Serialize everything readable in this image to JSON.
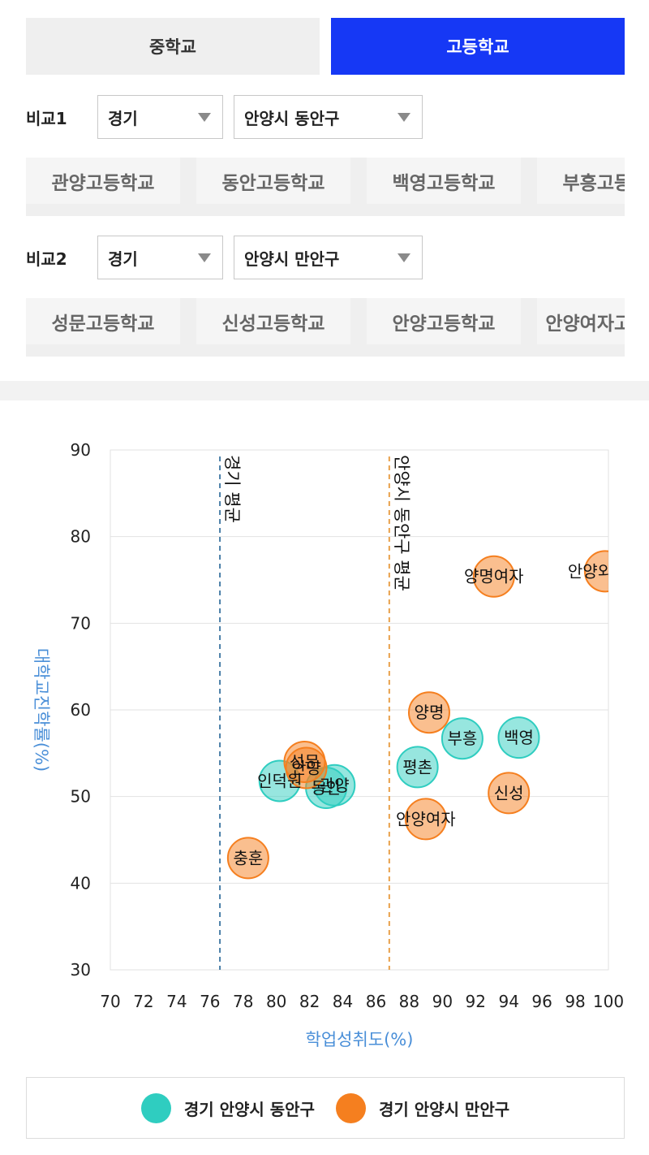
{
  "tabs": [
    {
      "label": "중학교",
      "active": false
    },
    {
      "label": "고등학교",
      "active": true
    }
  ],
  "compare1": {
    "label": "비교1",
    "region": "경기",
    "district": "안양시 동안구",
    "schools": [
      "관양고등학교",
      "동안고등학교",
      "백영고등학교",
      "부흥고등학교"
    ]
  },
  "compare2": {
    "label": "비교2",
    "region": "경기",
    "district": "안양시 만안구",
    "schools": [
      "성문고등학교",
      "신성고등학교",
      "안양고등학교",
      "안양여자고등학교"
    ]
  },
  "colors": {
    "series1": "#2fcdc0",
    "series2": "#f57f1f",
    "tab_active": "#1638f5",
    "axis_title": "#4a8fd8",
    "ref1_line": "#4a7fa8",
    "ref2_line": "#e8a04a"
  },
  "chart_data": {
    "type": "scatter",
    "xlabel": "학업성취도(%)",
    "ylabel": "대학교진학률(%)",
    "xlim": [
      70,
      100
    ],
    "ylim": [
      30,
      90
    ],
    "x_ticks": [
      70,
      72,
      74,
      76,
      78,
      80,
      82,
      84,
      86,
      88,
      90,
      92,
      94,
      96,
      98,
      100
    ],
    "y_ticks": [
      30,
      40,
      50,
      60,
      70,
      80,
      90
    ],
    "grid": "horizontal",
    "reference_lines": [
      {
        "label": "경기 평균",
        "x": 76.6,
        "color_key": "ref1_line"
      },
      {
        "label": "안양시 동안구 평균",
        "x": 86.8,
        "color_key": "ref2_line"
      }
    ],
    "series": [
      {
        "name": "경기 안양시 동안구",
        "color_key": "series1",
        "points": [
          {
            "label": "인덕원",
            "x": 80.2,
            "y": 51.8
          },
          {
            "label": "동안",
            "x": 83.0,
            "y": 51.0
          },
          {
            "label": "관양",
            "x": 83.5,
            "y": 51.3
          },
          {
            "label": "평촌",
            "x": 88.5,
            "y": 53.4
          },
          {
            "label": "부흥",
            "x": 91.2,
            "y": 56.7
          },
          {
            "label": "백영",
            "x": 94.6,
            "y": 56.8
          }
        ]
      },
      {
        "name": "경기 안양시 만안구",
        "color_key": "series2",
        "points": [
          {
            "label": "충훈",
            "x": 78.3,
            "y": 42.9
          },
          {
            "label": "안양",
            "x": 81.8,
            "y": 53.3
          },
          {
            "label": "성문",
            "x": 81.7,
            "y": 54.0
          },
          {
            "label": "양명",
            "x": 89.2,
            "y": 59.7
          },
          {
            "label": "안양여자",
            "x": 89.0,
            "y": 47.4
          },
          {
            "label": "신성",
            "x": 94.0,
            "y": 50.4
          },
          {
            "label": "양명여자",
            "x": 93.1,
            "y": 75.4
          },
          {
            "label": "안양외국어",
            "x": 99.8,
            "y": 76.0
          }
        ]
      }
    ]
  }
}
